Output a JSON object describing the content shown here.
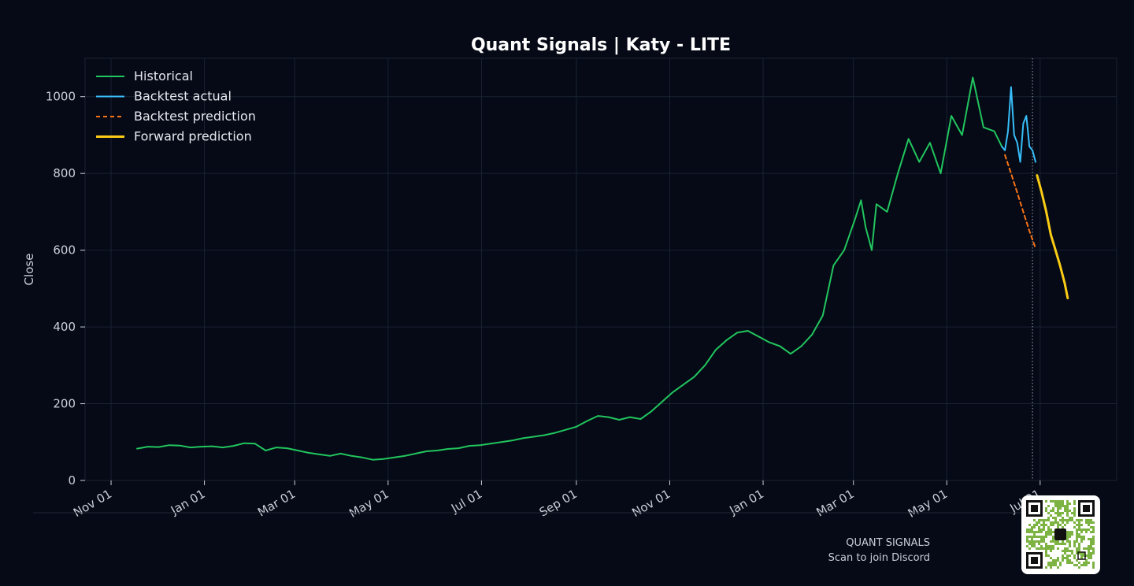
{
  "footer": {
    "brand": "QUANT SIGNALS",
    "cta": "Scan to join Discord"
  },
  "colors": {
    "background": "#050a16",
    "historical": "#22c55e",
    "backtest_actual": "#38bdf8",
    "backtest_prediction": "#f97316",
    "forward_prediction": "#facc15"
  },
  "chart_data": {
    "type": "line",
    "title": "Quant Signals | Katy - LITE",
    "xlabel": "",
    "ylabel": "Close",
    "xlim": [
      "2024-10-15",
      "2026-08-20"
    ],
    "ylim": [
      0,
      1100
    ],
    "grid": true,
    "legend_position": "top-left",
    "x_ticks": [
      {
        "date": "2024-11-01",
        "label": "Nov 01"
      },
      {
        "date": "2025-01-01",
        "label": "Jan 01"
      },
      {
        "date": "2025-03-01",
        "label": "Mar 01"
      },
      {
        "date": "2025-05-01",
        "label": "May 01"
      },
      {
        "date": "2025-07-01",
        "label": "Jul 01"
      },
      {
        "date": "2025-09-01",
        "label": "Sep 01"
      },
      {
        "date": "2025-11-01",
        "label": "Nov 01"
      },
      {
        "date": "2026-01-01",
        "label": "Jan 01"
      },
      {
        "date": "2026-03-01",
        "label": "Mar 01"
      },
      {
        "date": "2026-05-01",
        "label": "May 01"
      },
      {
        "date": "2026-07-01",
        "label": "Jul 01"
      }
    ],
    "y_ticks": [
      0,
      200,
      400,
      600,
      800,
      1000
    ],
    "forecast_start": "2026-06-26",
    "series": [
      {
        "name": "Historical",
        "style": "solid",
        "points": [
          [
            "2024-11-18",
            83
          ],
          [
            "2024-11-25",
            88
          ],
          [
            "2024-12-02",
            87
          ],
          [
            "2024-12-09",
            92
          ],
          [
            "2024-12-16",
            91
          ],
          [
            "2024-12-23",
            86
          ],
          [
            "2024-12-30",
            88
          ],
          [
            "2025-01-06",
            89
          ],
          [
            "2025-01-13",
            86
          ],
          [
            "2025-01-20",
            90
          ],
          [
            "2025-01-27",
            97
          ],
          [
            "2025-02-03",
            96
          ],
          [
            "2025-02-10",
            78
          ],
          [
            "2025-02-17",
            86
          ],
          [
            "2025-02-24",
            84
          ],
          [
            "2025-03-03",
            78
          ],
          [
            "2025-03-10",
            72
          ],
          [
            "2025-03-17",
            68
          ],
          [
            "2025-03-24",
            64
          ],
          [
            "2025-03-31",
            70
          ],
          [
            "2025-04-07",
            64
          ],
          [
            "2025-04-14",
            60
          ],
          [
            "2025-04-21",
            54
          ],
          [
            "2025-04-28",
            56
          ],
          [
            "2025-05-05",
            60
          ],
          [
            "2025-05-12",
            64
          ],
          [
            "2025-05-19",
            70
          ],
          [
            "2025-05-26",
            76
          ],
          [
            "2025-06-02",
            78
          ],
          [
            "2025-06-09",
            82
          ],
          [
            "2025-06-16",
            84
          ],
          [
            "2025-06-23",
            90
          ],
          [
            "2025-06-30",
            92
          ],
          [
            "2025-07-07",
            96
          ],
          [
            "2025-07-14",
            100
          ],
          [
            "2025-07-21",
            104
          ],
          [
            "2025-07-28",
            110
          ],
          [
            "2025-08-04",
            114
          ],
          [
            "2025-08-11",
            118
          ],
          [
            "2025-08-18",
            124
          ],
          [
            "2025-08-25",
            132
          ],
          [
            "2025-09-01",
            140
          ],
          [
            "2025-09-08",
            155
          ],
          [
            "2025-09-15",
            168
          ],
          [
            "2025-09-22",
            165
          ],
          [
            "2025-09-29",
            158
          ],
          [
            "2025-10-06",
            165
          ],
          [
            "2025-10-13",
            160
          ],
          [
            "2025-10-20",
            180
          ],
          [
            "2025-10-27",
            205
          ],
          [
            "2025-11-03",
            230
          ],
          [
            "2025-11-10",
            250
          ],
          [
            "2025-11-17",
            270
          ],
          [
            "2025-11-24",
            300
          ],
          [
            "2025-12-01",
            340
          ],
          [
            "2025-12-08",
            365
          ],
          [
            "2025-12-15",
            385
          ],
          [
            "2025-12-22",
            390
          ],
          [
            "2025-12-29",
            375
          ],
          [
            "2026-01-05",
            360
          ],
          [
            "2026-01-12",
            350
          ],
          [
            "2026-01-19",
            330
          ],
          [
            "2026-01-26",
            350
          ],
          [
            "2026-02-02",
            380
          ],
          [
            "2026-02-09",
            430
          ],
          [
            "2026-02-16",
            560
          ],
          [
            "2026-02-23",
            600
          ],
          [
            "2026-03-02",
            680
          ],
          [
            "2026-03-06",
            730
          ],
          [
            "2026-03-09",
            660
          ],
          [
            "2026-03-13",
            600
          ],
          [
            "2026-03-16",
            720
          ],
          [
            "2026-03-23",
            700
          ],
          [
            "2026-03-30",
            800
          ],
          [
            "2026-04-06",
            890
          ],
          [
            "2026-04-13",
            830
          ],
          [
            "2026-04-20",
            880
          ],
          [
            "2026-04-27",
            800
          ],
          [
            "2026-05-04",
            950
          ],
          [
            "2026-05-11",
            900
          ],
          [
            "2026-05-18",
            1050
          ],
          [
            "2026-05-25",
            920
          ],
          [
            "2026-06-01",
            910
          ],
          [
            "2026-06-06",
            870
          ]
        ]
      },
      {
        "name": "Backtest actual",
        "style": "solid",
        "points": [
          [
            "2026-06-06",
            870
          ],
          [
            "2026-06-08",
            860
          ],
          [
            "2026-06-10",
            910
          ],
          [
            "2026-06-12",
            1025
          ],
          [
            "2026-06-14",
            900
          ],
          [
            "2026-06-16",
            880
          ],
          [
            "2026-06-18",
            830
          ],
          [
            "2026-06-20",
            930
          ],
          [
            "2026-06-22",
            950
          ],
          [
            "2026-06-24",
            870
          ],
          [
            "2026-06-26",
            860
          ],
          [
            "2026-06-28",
            830
          ]
        ]
      },
      {
        "name": "Backtest prediction",
        "style": "dashed",
        "points": [
          [
            "2026-06-08",
            848
          ],
          [
            "2026-06-12",
            800
          ],
          [
            "2026-06-16",
            750
          ],
          [
            "2026-06-20",
            700
          ],
          [
            "2026-06-24",
            650
          ],
          [
            "2026-06-28",
            605
          ]
        ]
      },
      {
        "name": "Forward prediction",
        "style": "solid",
        "points": [
          [
            "2026-06-29",
            795
          ],
          [
            "2026-07-02",
            750
          ],
          [
            "2026-07-05",
            700
          ],
          [
            "2026-07-08",
            640
          ],
          [
            "2026-07-11",
            600
          ],
          [
            "2026-07-14",
            560
          ],
          [
            "2026-07-17",
            515
          ],
          [
            "2026-07-19",
            475
          ]
        ]
      }
    ]
  }
}
